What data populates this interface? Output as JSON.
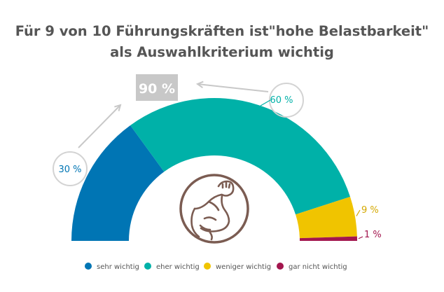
{
  "title_line1": "Für 9 von 10 Führungskräften ist\"hohe Belastbarkeit\"",
  "title_line2": "als Auswahlkriterium wichtig",
  "chart_data": {
    "type": "pie",
    "layout": "semi-donut",
    "categories": [
      "sehr wichtig",
      "eher wichtig",
      "weniger wichtig",
      "gar nicht wichtig"
    ],
    "values": [
      30,
      60,
      9,
      1
    ],
    "unit": "%",
    "value_labels": [
      "30 %",
      "60 %",
      "9 %",
      "1 %"
    ],
    "colors": [
      "#0075b4",
      "#00b1a8",
      "#f0c400",
      "#a3164e"
    ],
    "label_colors": [
      "#0075b4",
      "#00b1a8",
      "#d4a800",
      "#a3164e"
    ],
    "combined_label": "90 %",
    "combined_label_bg": "#c8c8c8",
    "legend_position": "bottom",
    "center_icon": "flexed-arm-icon"
  }
}
